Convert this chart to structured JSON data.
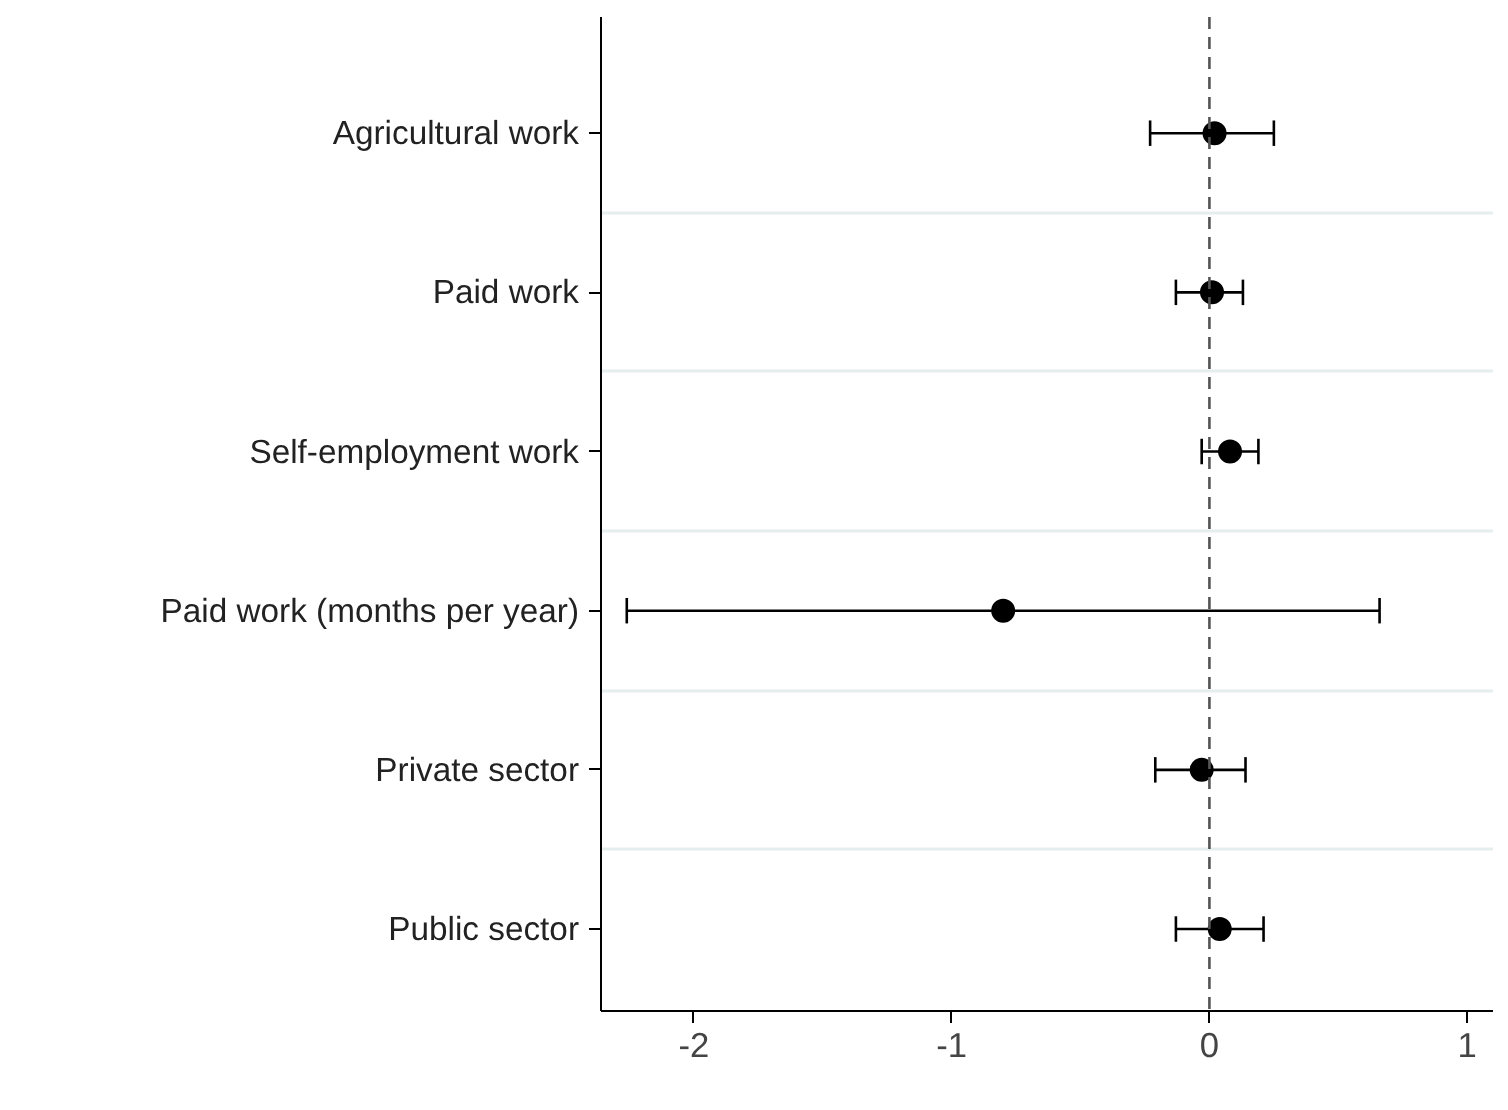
{
  "chart_data": {
    "type": "scatter",
    "orientation": "horizontal",
    "categories": [
      "Agricultural work",
      "Paid work",
      "Self-employment work",
      "Paid work (months per year)",
      "Private sector",
      "Public sector"
    ],
    "values": [
      0.02,
      0.01,
      0.08,
      -0.8,
      -0.03,
      0.04
    ],
    "errors": [
      [
        -0.23,
        0.25
      ],
      [
        -0.13,
        0.13
      ],
      [
        -0.03,
        0.19
      ],
      [
        -2.26,
        0.66
      ],
      [
        -0.21,
        0.14
      ],
      [
        -0.13,
        0.21
      ]
    ],
    "color": "#000000",
    "marker": "circle",
    "xlim": [
      -2.36,
      1.1
    ],
    "xticks": [
      -2,
      -1,
      0,
      1
    ],
    "ref_lines": [
      {
        "axis": "x",
        "value": 0,
        "color": "#555555",
        "line_style": "dashed"
      }
    ],
    "grid": "y"
  }
}
